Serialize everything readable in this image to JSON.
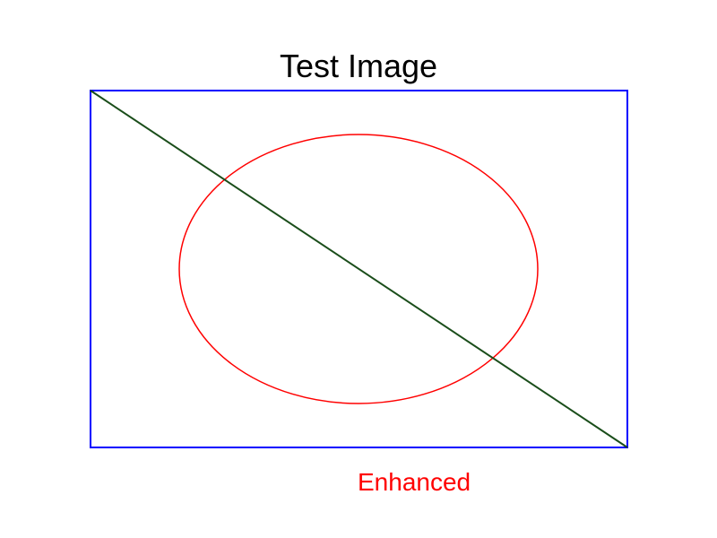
{
  "title": "Test Image",
  "caption": "Enhanced",
  "shapes": {
    "rectangle": {
      "stroke": "#0000ff"
    },
    "ellipse": {
      "stroke": "#ff0000"
    },
    "diagonal_line": {
      "stroke": "#1a4d1a"
    }
  },
  "colors": {
    "background": "#ffffff",
    "title_text": "#000000",
    "caption_text": "#ff0000"
  }
}
